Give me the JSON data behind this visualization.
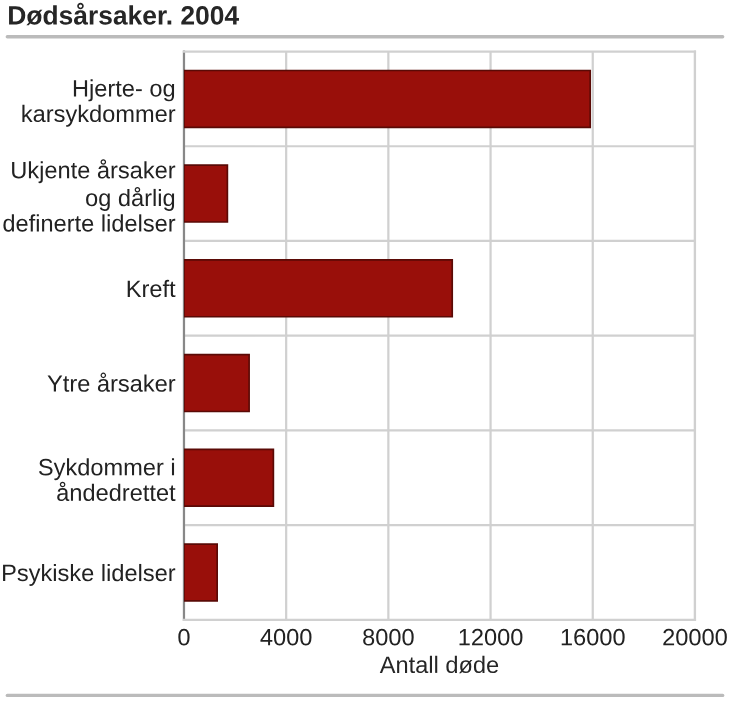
{
  "chart_data": {
    "type": "bar",
    "orientation": "horizontal",
    "title": "Dødsårsaker. 2004",
    "xlabel": "Antall døde",
    "categories": [
      "Hjerte- og\nkarsykdommer",
      "Ukjente årsaker\nog dårlig\ndefinerte lidelser",
      "Kreft",
      "Ytre årsaker",
      "Sykdommer i\nåndedrettet",
      "Psykiske lidelser"
    ],
    "values": [
      15900,
      1700,
      10500,
      2550,
      3500,
      1300
    ],
    "color": "#990f0a",
    "xlim": [
      0,
      20000
    ],
    "xticks": [
      0,
      4000,
      8000,
      12000,
      16000,
      20000
    ],
    "grid": true
  }
}
